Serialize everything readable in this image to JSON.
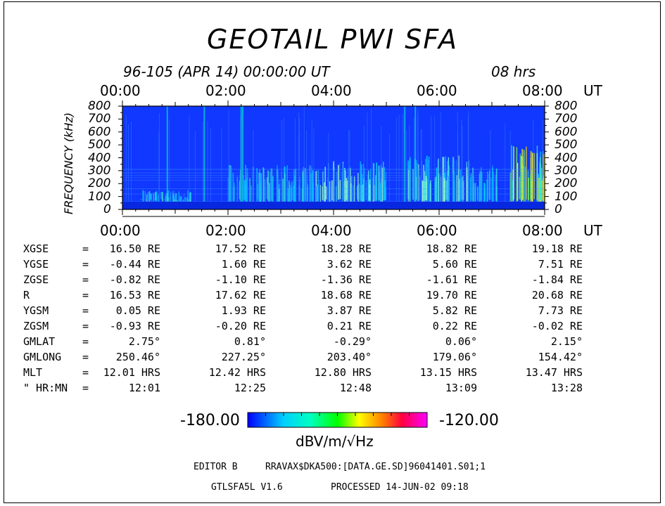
{
  "chart_data": {
    "type": "heatmap",
    "title": "GEOTAIL  PWI  SFA",
    "subtitle_left": "96-105 (APR 14) 00:00:00 UT",
    "subtitle_right": "08 hrs",
    "xlabel": "UT",
    "ylabel": "FREQUENCY (kHz)",
    "x_ticks": [
      "00:00",
      "02:00",
      "04:00",
      "06:00",
      "08:00"
    ],
    "y_ticks": [
      "0",
      "100",
      "200",
      "300",
      "400",
      "500",
      "600",
      "700",
      "800"
    ],
    "xlim_hours": [
      0,
      8
    ],
    "ylim": [
      0,
      800
    ],
    "colorbar": {
      "min": "-180.00",
      "max": "-120.00",
      "unit": "dBV/m/√Hz",
      "colors": [
        "#0000ff",
        "#00c8ff",
        "#00ffd0",
        "#00ff00",
        "#ffff00",
        "#ff8000",
        "#ff0040",
        "#ff00ff"
      ]
    },
    "background_color": "#1038ff",
    "features": [
      {
        "hours": [
          0.35,
          1.3
        ],
        "freq_top": 150,
        "intensity": "low"
      },
      {
        "hours": [
          2.0,
          3.6
        ],
        "freq_top": 350,
        "intensity": "low"
      },
      {
        "hours": [
          3.6,
          5.0
        ],
        "freq_top": 380,
        "intensity": "medium"
      },
      {
        "hours": [
          5.4,
          6.6
        ],
        "freq_top": 420,
        "intensity": "medium"
      },
      {
        "hours": [
          6.6,
          7.1
        ],
        "freq_top": 350,
        "intensity": "low"
      },
      {
        "hours": [
          7.35,
          8.0
        ],
        "freq_top": 500,
        "intensity": "high"
      }
    ]
  },
  "orbit": {
    "rows": [
      {
        "label": "XGSE",
        "eq": "=",
        "values": [
          "16.50 RE",
          "17.52 RE",
          "18.28 RE",
          "18.82 RE",
          "19.18 RE"
        ]
      },
      {
        "label": "YGSE",
        "eq": "=",
        "values": [
          "-0.44 RE",
          "1.60 RE",
          "3.62 RE",
          "5.60 RE",
          "7.51 RE"
        ]
      },
      {
        "label": "ZGSE",
        "eq": "=",
        "values": [
          "-0.82 RE",
          "-1.10 RE",
          "-1.36 RE",
          "-1.61 RE",
          "-1.84 RE"
        ]
      },
      {
        "label": "R",
        "eq": "=",
        "values": [
          "16.53 RE",
          "17.62 RE",
          "18.68 RE",
          "19.70 RE",
          "20.68 RE"
        ]
      },
      {
        "label": "YGSM",
        "eq": "=",
        "values": [
          "0.05 RE",
          "1.93 RE",
          "3.87 RE",
          "5.82 RE",
          "7.73 RE"
        ]
      },
      {
        "label": "ZGSM",
        "eq": "=",
        "values": [
          "-0.93 RE",
          "-0.20 RE",
          "0.21 RE",
          "0.22 RE",
          "-0.02 RE"
        ]
      },
      {
        "label": "GMLAT",
        "eq": "=",
        "values": [
          "2.75°",
          "0.81°",
          "-0.29°",
          "0.06°",
          "2.15°"
        ]
      },
      {
        "label": "GMLONG",
        "eq": "=",
        "values": [
          "250.46°",
          "227.25°",
          "203.40°",
          "179.06°",
          "154.42°"
        ]
      },
      {
        "label": "MLT",
        "eq": "=",
        "values": [
          "12.01 HRS",
          "12.42 HRS",
          "12.80 HRS",
          "13.15 HRS",
          "13.47 HRS"
        ]
      },
      {
        "label": "\" HR:MN",
        "eq": "=",
        "values": [
          "12:01",
          "12:25",
          "12:48",
          "13:09",
          "13:28"
        ]
      }
    ]
  },
  "footer": {
    "editor_label": "EDITOR B",
    "path": "RRAVAX$DKA500:[DATA.GE.SD]96041401.S01;1",
    "program": "GTLSFA5L V1.6",
    "processed": "PROCESSED 14-JUN-02  09:18"
  }
}
